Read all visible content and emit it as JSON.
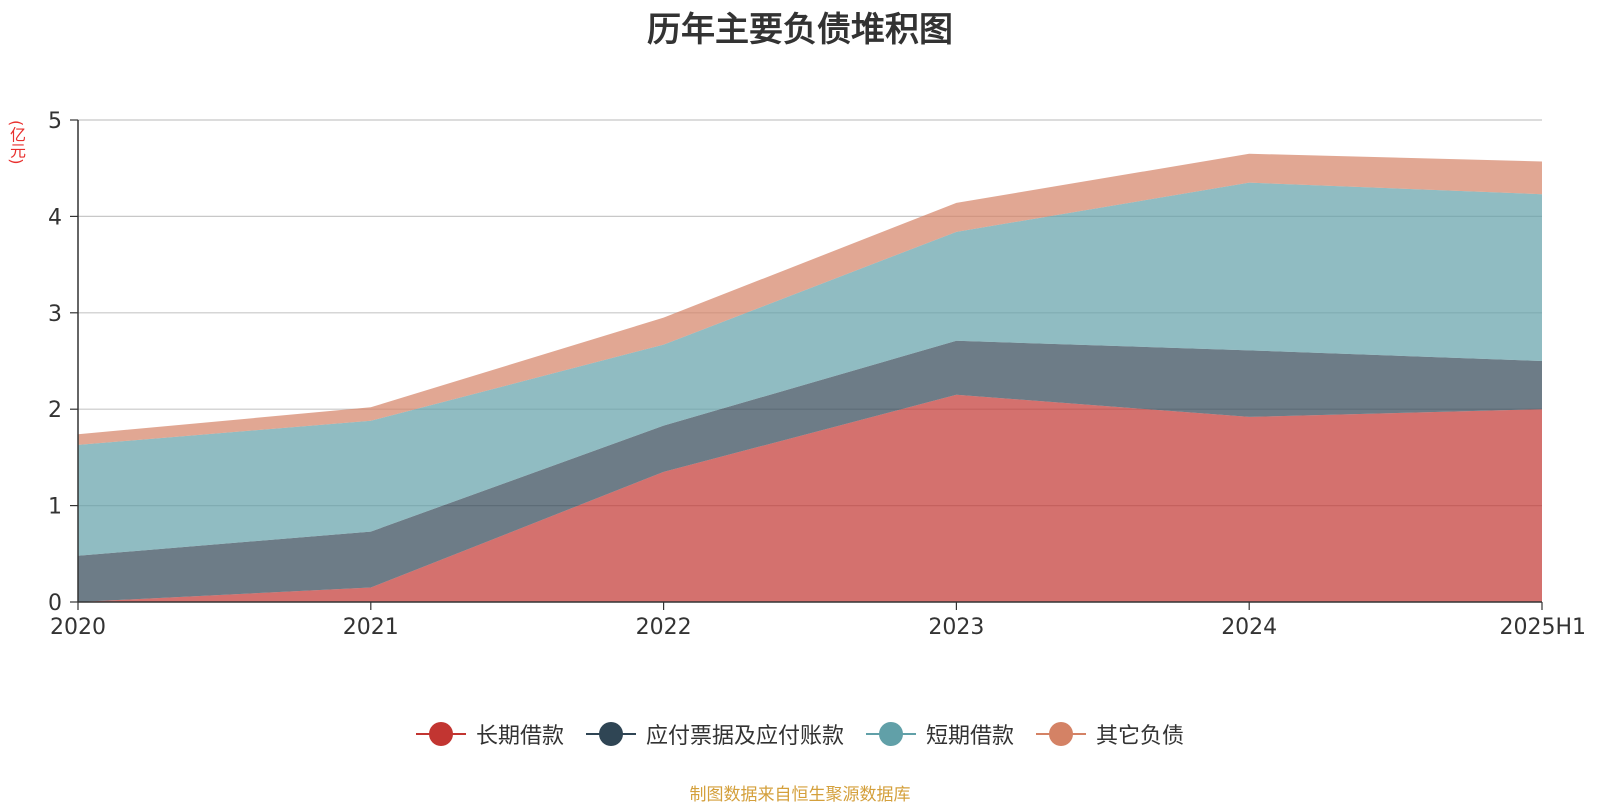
{
  "chart_data": {
    "type": "area",
    "stacked": true,
    "title": "历年主要负债堆积图",
    "unit_label": "(亿元)",
    "categories": [
      "2020",
      "2021",
      "2022",
      "2023",
      "2024",
      "2025H1"
    ],
    "ylim": [
      0,
      5
    ],
    "yticks": [
      0,
      1,
      2,
      3,
      4,
      5
    ],
    "grid": true,
    "legend_position": "bottom",
    "series": [
      {
        "name": "长期借款",
        "color": "#c23531",
        "values": [
          0.0,
          0.15,
          1.35,
          2.15,
          1.92,
          2.0
        ]
      },
      {
        "name": "应付票据及应付账款",
        "color": "#2f4554",
        "values": [
          0.48,
          0.58,
          0.48,
          0.56,
          0.69,
          0.5
        ]
      },
      {
        "name": "短期借款",
        "color": "#61a0a8",
        "values": [
          1.15,
          1.15,
          0.84,
          1.13,
          1.74,
          1.73
        ]
      },
      {
        "name": "其它负债",
        "color": "#d48265",
        "values": [
          0.11,
          0.14,
          0.28,
          0.3,
          0.3,
          0.34
        ]
      }
    ]
  },
  "footer": {
    "source": "制图数据来自恒生聚源数据库"
  }
}
